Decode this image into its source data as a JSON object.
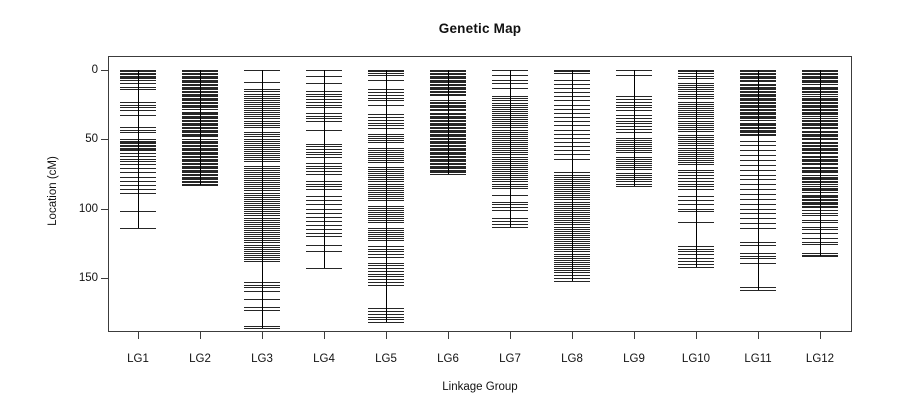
{
  "chart_data": {
    "type": "genetic-map",
    "title": "Genetic Map",
    "xlabel": "Linkage Group",
    "ylabel": "Location (cM)",
    "y_ticks": [
      0,
      50,
      100,
      150
    ],
    "ylim": [
      0,
      199
    ],
    "y_axis_direction": "increases-downward",
    "grid": false,
    "legend": null,
    "colors": {
      "marker": "#000000",
      "axis": "#3c3c3c",
      "background": "#ffffff",
      "text": "#111111"
    },
    "groups": [
      {
        "name": "LG1",
        "length_cM": 114,
        "markers": [
          0,
          1,
          2,
          3,
          4,
          5,
          6,
          7,
          9.5,
          12,
          14,
          23,
          25,
          27,
          29,
          32.5,
          41,
          43,
          45,
          50,
          51,
          52,
          53,
          54,
          55,
          56,
          57,
          58,
          60,
          62,
          64,
          66,
          68,
          71,
          74,
          77,
          80,
          83,
          86,
          89,
          102,
          114
        ]
      },
      {
        "name": "LG2",
        "length_cM": 83,
        "markers": [
          0,
          1,
          2,
          3,
          4,
          5,
          6,
          7,
          8,
          9,
          10,
          11,
          12,
          13,
          14,
          15,
          16,
          17,
          18,
          19,
          20,
          21,
          22,
          23,
          24,
          25,
          26,
          27,
          28,
          30,
          31,
          32,
          33,
          34,
          35,
          36,
          37,
          38,
          39,
          40,
          41,
          42,
          43,
          44,
          45,
          46,
          47,
          48,
          50,
          51,
          52,
          53,
          54,
          55,
          56,
          57,
          58,
          59,
          60,
          61,
          62,
          63,
          64,
          65,
          66,
          67,
          68,
          69,
          70,
          71,
          72,
          73,
          74,
          75,
          76,
          77,
          78,
          79,
          80,
          81,
          82,
          83
        ]
      },
      {
        "name": "LG3",
        "length_cM": 186,
        "markers": [
          0,
          8.5,
          14,
          15.5,
          17,
          18.5,
          20,
          21.5,
          23,
          24.5,
          26,
          27.5,
          29,
          30.5,
          32,
          33.5,
          35,
          36.5,
          38,
          39.5,
          41,
          45,
          46.5,
          48,
          49.5,
          51,
          52.5,
          54,
          55.5,
          57,
          58.5,
          60,
          61.5,
          63,
          64.5,
          66,
          69,
          70.5,
          72,
          73.5,
          75,
          76.5,
          78,
          79.5,
          81,
          82.5,
          84,
          85.5,
          87,
          88.5,
          90,
          91.5,
          93,
          94.5,
          96,
          97.5,
          99,
          100.5,
          102,
          103.5,
          105,
          106.5,
          108,
          109.5,
          111,
          112.5,
          114,
          115.5,
          117,
          118.5,
          120,
          121.5,
          123,
          124.5,
          126,
          127.5,
          129,
          130.5,
          132,
          133.5,
          135,
          136.5,
          138,
          153,
          155,
          157,
          159.5,
          165,
          171,
          173,
          185,
          186
        ]
      },
      {
        "name": "LG4",
        "length_cM": 143,
        "markers": [
          0,
          4,
          9.5,
          15,
          17,
          19,
          21,
          23,
          25,
          27,
          31,
          33,
          35,
          37,
          43,
          53.5,
          55,
          57,
          59,
          61,
          63,
          67,
          69,
          71,
          73,
          75,
          80,
          82,
          84,
          86,
          91,
          94,
          97,
          100,
          103,
          106,
          109,
          112,
          115,
          118,
          120,
          126,
          131,
          143
        ]
      },
      {
        "name": "LG5",
        "length_cM": 182,
        "markers": [
          0,
          1,
          2,
          3.5,
          7,
          14,
          16,
          18,
          20,
          21.5,
          25,
          32,
          34,
          36,
          38,
          40,
          42,
          46,
          47.5,
          49,
          50.5,
          52,
          56,
          57.5,
          59,
          60.5,
          62,
          63.5,
          65,
          66.5,
          70,
          71.5,
          73,
          74.5,
          76,
          77.5,
          79,
          80.5,
          82,
          83.5,
          85,
          86.5,
          88,
          89.5,
          91,
          92.5,
          94,
          98,
          99.5,
          101,
          102.5,
          104,
          105.5,
          107,
          108.5,
          110,
          114,
          115.5,
          117,
          118.5,
          120,
          121.5,
          123,
          127,
          129,
          131,
          133,
          135,
          139,
          141,
          143,
          145,
          147,
          149,
          151,
          153,
          155,
          172,
          174,
          176,
          178,
          180,
          182
        ]
      },
      {
        "name": "LG6",
        "length_cM": 75,
        "markers": [
          0,
          1,
          2,
          3,
          4,
          5,
          6,
          7,
          8,
          9,
          10,
          11,
          12,
          13,
          14,
          15,
          16,
          17,
          18,
          22,
          23,
          24,
          25,
          26,
          27,
          28,
          29,
          31,
          32,
          33,
          34,
          35,
          36,
          37,
          38,
          39,
          40,
          41,
          42,
          43,
          44,
          45,
          46,
          47,
          48,
          49,
          50,
          51,
          52,
          53,
          54,
          55,
          56,
          57,
          58,
          59,
          60,
          61,
          62,
          63,
          64,
          65,
          66,
          67,
          68,
          69,
          70,
          71,
          72,
          73,
          74,
          75
        ]
      },
      {
        "name": "LG7",
        "length_cM": 113,
        "markers": [
          0,
          3.5,
          7,
          9.5,
          13,
          19,
          20.5,
          22,
          23.5,
          25,
          26.5,
          28,
          29.5,
          31,
          32.5,
          34,
          35.5,
          37,
          38.5,
          40,
          41.5,
          43,
          44.5,
          46,
          47.5,
          49,
          50.5,
          52,
          53.5,
          55,
          56.5,
          58,
          59.5,
          61,
          62.5,
          64,
          65.5,
          67,
          68.5,
          70,
          71.5,
          73,
          74.5,
          76,
          77.5,
          79,
          80.5,
          82,
          83.5,
          85,
          90,
          95,
          97,
          99,
          101,
          107,
          109,
          111,
          113
        ]
      },
      {
        "name": "LG8",
        "length_cM": 152,
        "markers": [
          0,
          1,
          2.5,
          7,
          10,
          13,
          16,
          19,
          22,
          25,
          28,
          31,
          34,
          37,
          40,
          43,
          46,
          49,
          52,
          55,
          58,
          61,
          64,
          74,
          75.5,
          77,
          78.5,
          80,
          81.5,
          83,
          84.5,
          86,
          87.5,
          89,
          90.5,
          92,
          93.5,
          95,
          96.5,
          98,
          99.5,
          101,
          102.5,
          104,
          105.5,
          107,
          108.5,
          110,
          111.5,
          113,
          114.5,
          116,
          117.5,
          119,
          120.5,
          122,
          123.5,
          125,
          126.5,
          128,
          129.5,
          131,
          132.5,
          134,
          135.5,
          137,
          138.5,
          140,
          141.5,
          143,
          144.5,
          146,
          148,
          150,
          152
        ]
      },
      {
        "name": "LG9",
        "length_cM": 84,
        "markers": [
          0,
          3.5,
          19,
          21,
          23,
          25,
          27,
          29,
          32.5,
          34.5,
          36.5,
          38.5,
          40.5,
          42.5,
          44.5,
          49,
          50.5,
          52,
          53.5,
          55,
          56.5,
          58,
          59.5,
          62.5,
          64,
          65.5,
          67,
          68.5,
          70,
          71.5,
          74.5,
          76,
          77.5,
          79,
          80.5,
          82,
          84
        ]
      },
      {
        "name": "LG10",
        "length_cM": 142,
        "markers": [
          0,
          1,
          2.5,
          4,
          6,
          9.5,
          11,
          12.5,
          14,
          15.5,
          17,
          18.5,
          20,
          23,
          24.5,
          26,
          27.5,
          29,
          30.5,
          32,
          33.5,
          35,
          36.5,
          38,
          39.5,
          41,
          42.5,
          44,
          47,
          48.5,
          50,
          51.5,
          53,
          54.5,
          56,
          57.5,
          59,
          60.5,
          62,
          63.5,
          65,
          66.5,
          68,
          72,
          74,
          76,
          78,
          80,
          82,
          84,
          86,
          91,
          94,
          97,
          100,
          102,
          110,
          127,
          129,
          131,
          133,
          136,
          138,
          140,
          142
        ]
      },
      {
        "name": "LG11",
        "length_cM": 158.5,
        "markers": [
          0,
          1,
          2,
          3,
          4,
          5,
          6,
          7,
          8,
          10,
          11,
          12,
          13,
          14,
          15,
          16,
          17,
          18,
          19,
          20,
          21,
          22,
          23,
          24,
          25,
          26,
          27,
          28,
          29,
          30,
          31,
          32,
          33,
          34,
          35,
          36,
          38,
          39,
          40,
          41,
          42,
          43,
          44,
          45,
          46,
          47,
          51,
          54.5,
          58,
          61.5,
          65,
          68.5,
          72,
          75.5,
          79,
          82.5,
          86,
          89.5,
          93,
          96.5,
          100,
          103.5,
          107,
          110.5,
          114,
          124,
          126,
          132,
          134,
          136,
          139.5,
          157,
          158.5
        ]
      },
      {
        "name": "LG12",
        "length_cM": 134.5,
        "markers": [
          0,
          1,
          2,
          3,
          4,
          5,
          6,
          7,
          8,
          9,
          10,
          12,
          13,
          14,
          15,
          16,
          17,
          19,
          20,
          21,
          22,
          23,
          24,
          25,
          26,
          27,
          28,
          29,
          30,
          31,
          32,
          33,
          35,
          36,
          37,
          38,
          39,
          40,
          41,
          42,
          44,
          45,
          46,
          47,
          48,
          49,
          50,
          52,
          53,
          54,
          55,
          56,
          57,
          58,
          59,
          60,
          62,
          63,
          64,
          65,
          66,
          67,
          68,
          70,
          71,
          72,
          73,
          74,
          76,
          77,
          78,
          79,
          80,
          81,
          82,
          84,
          85,
          86,
          87,
          88,
          90,
          91,
          92,
          93,
          94,
          95,
          96,
          97,
          98,
          99,
          101,
          103,
          105,
          108,
          110,
          113,
          115,
          118,
          121,
          124,
          125.5,
          132,
          133.5,
          134.5
        ]
      }
    ]
  }
}
